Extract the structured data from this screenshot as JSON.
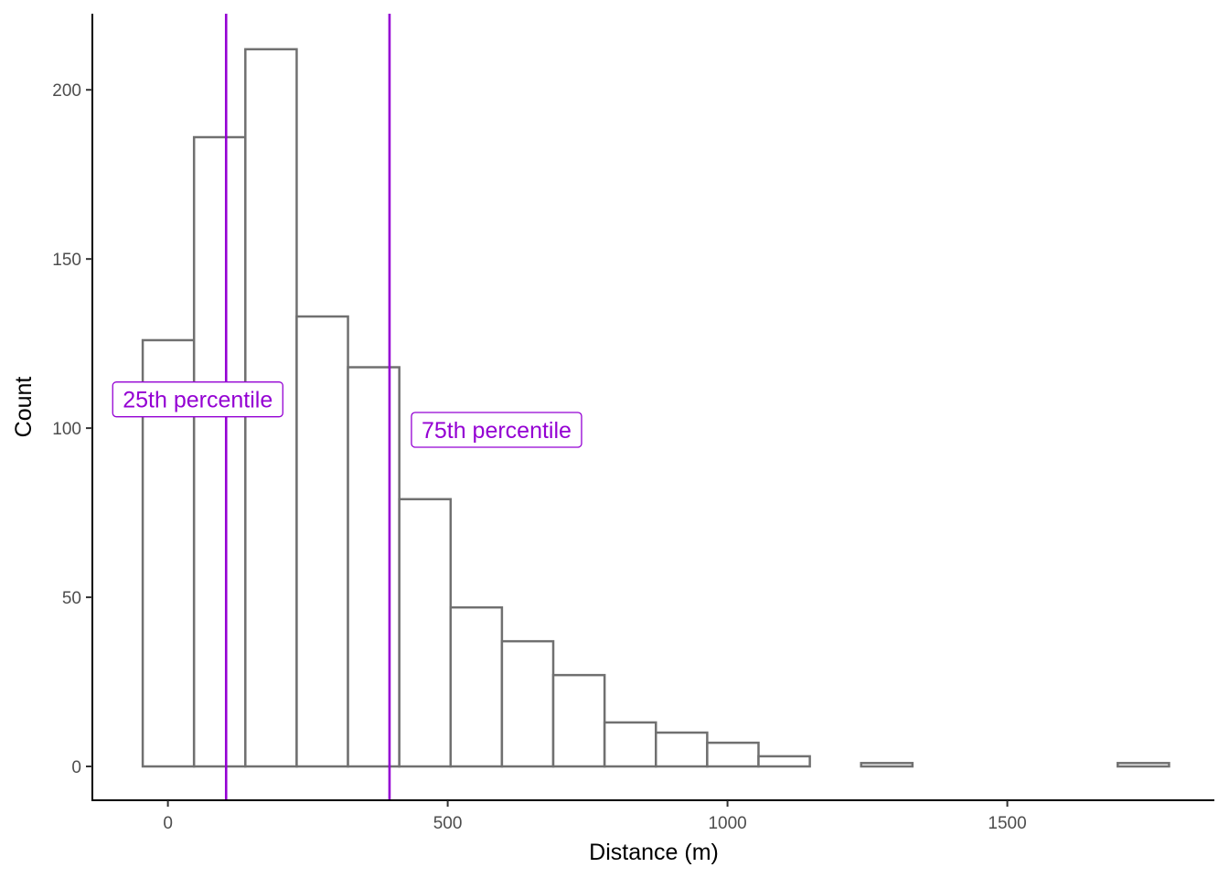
{
  "chart_data": {
    "type": "bar",
    "subtype": "histogram",
    "xlabel": "Distance (m)",
    "ylabel": "Count",
    "bin_width": 91.7,
    "bins": [
      {
        "x0": -45.0,
        "x1": 46.7,
        "count": 126
      },
      {
        "x0": 46.7,
        "x1": 138.4,
        "count": 186
      },
      {
        "x0": 138.4,
        "x1": 230.1,
        "count": 212
      },
      {
        "x0": 230.1,
        "x1": 321.8,
        "count": 133
      },
      {
        "x0": 321.8,
        "x1": 413.5,
        "count": 118
      },
      {
        "x0": 413.5,
        "x1": 505.2,
        "count": 79
      },
      {
        "x0": 505.2,
        "x1": 596.9,
        "count": 47
      },
      {
        "x0": 596.9,
        "x1": 688.6,
        "count": 37
      },
      {
        "x0": 688.6,
        "x1": 780.3,
        "count": 27
      },
      {
        "x0": 780.3,
        "x1": 872.0,
        "count": 13
      },
      {
        "x0": 872.0,
        "x1": 963.7,
        "count": 10
      },
      {
        "x0": 963.7,
        "x1": 1055.4,
        "count": 7
      },
      {
        "x0": 1055.4,
        "x1": 1147.1,
        "count": 3
      },
      {
        "x0": 1147.1,
        "x1": 1238.8,
        "count": 0
      },
      {
        "x0": 1238.8,
        "x1": 1330.5,
        "count": 1
      },
      {
        "x0": 1330.5,
        "x1": 1422.2,
        "count": 0
      },
      {
        "x0": 1422.2,
        "x1": 1513.9,
        "count": 0
      },
      {
        "x0": 1513.9,
        "x1": 1605.6,
        "count": 0
      },
      {
        "x0": 1605.6,
        "x1": 1697.3,
        "count": 0
      },
      {
        "x0": 1697.3,
        "x1": 1789.0,
        "count": 1
      }
    ],
    "x_ticks": [
      {
        "value": 0,
        "label": "0"
      },
      {
        "value": 500,
        "label": "500"
      },
      {
        "value": 1000,
        "label": "1000"
      },
      {
        "value": 1500,
        "label": "1500"
      }
    ],
    "y_ticks": [
      {
        "value": 0,
        "label": "0"
      },
      {
        "value": 50,
        "label": "50"
      },
      {
        "value": 100,
        "label": "100"
      },
      {
        "value": 150,
        "label": "150"
      },
      {
        "value": 200,
        "label": "200"
      }
    ],
    "xlim": [
      -135,
      1870
    ],
    "ylim": [
      -10,
      222.5
    ],
    "grid": false,
    "reference_lines": [
      {
        "x": 104,
        "label": "25th percentile",
        "label_y": 108.5
      },
      {
        "x": 396,
        "label": "75th percentile",
        "label_y": 99.5
      }
    ],
    "colors": {
      "bar_outline": "#707070",
      "bar_fill": "#ffffff",
      "reference_line": "#9400D3"
    }
  }
}
